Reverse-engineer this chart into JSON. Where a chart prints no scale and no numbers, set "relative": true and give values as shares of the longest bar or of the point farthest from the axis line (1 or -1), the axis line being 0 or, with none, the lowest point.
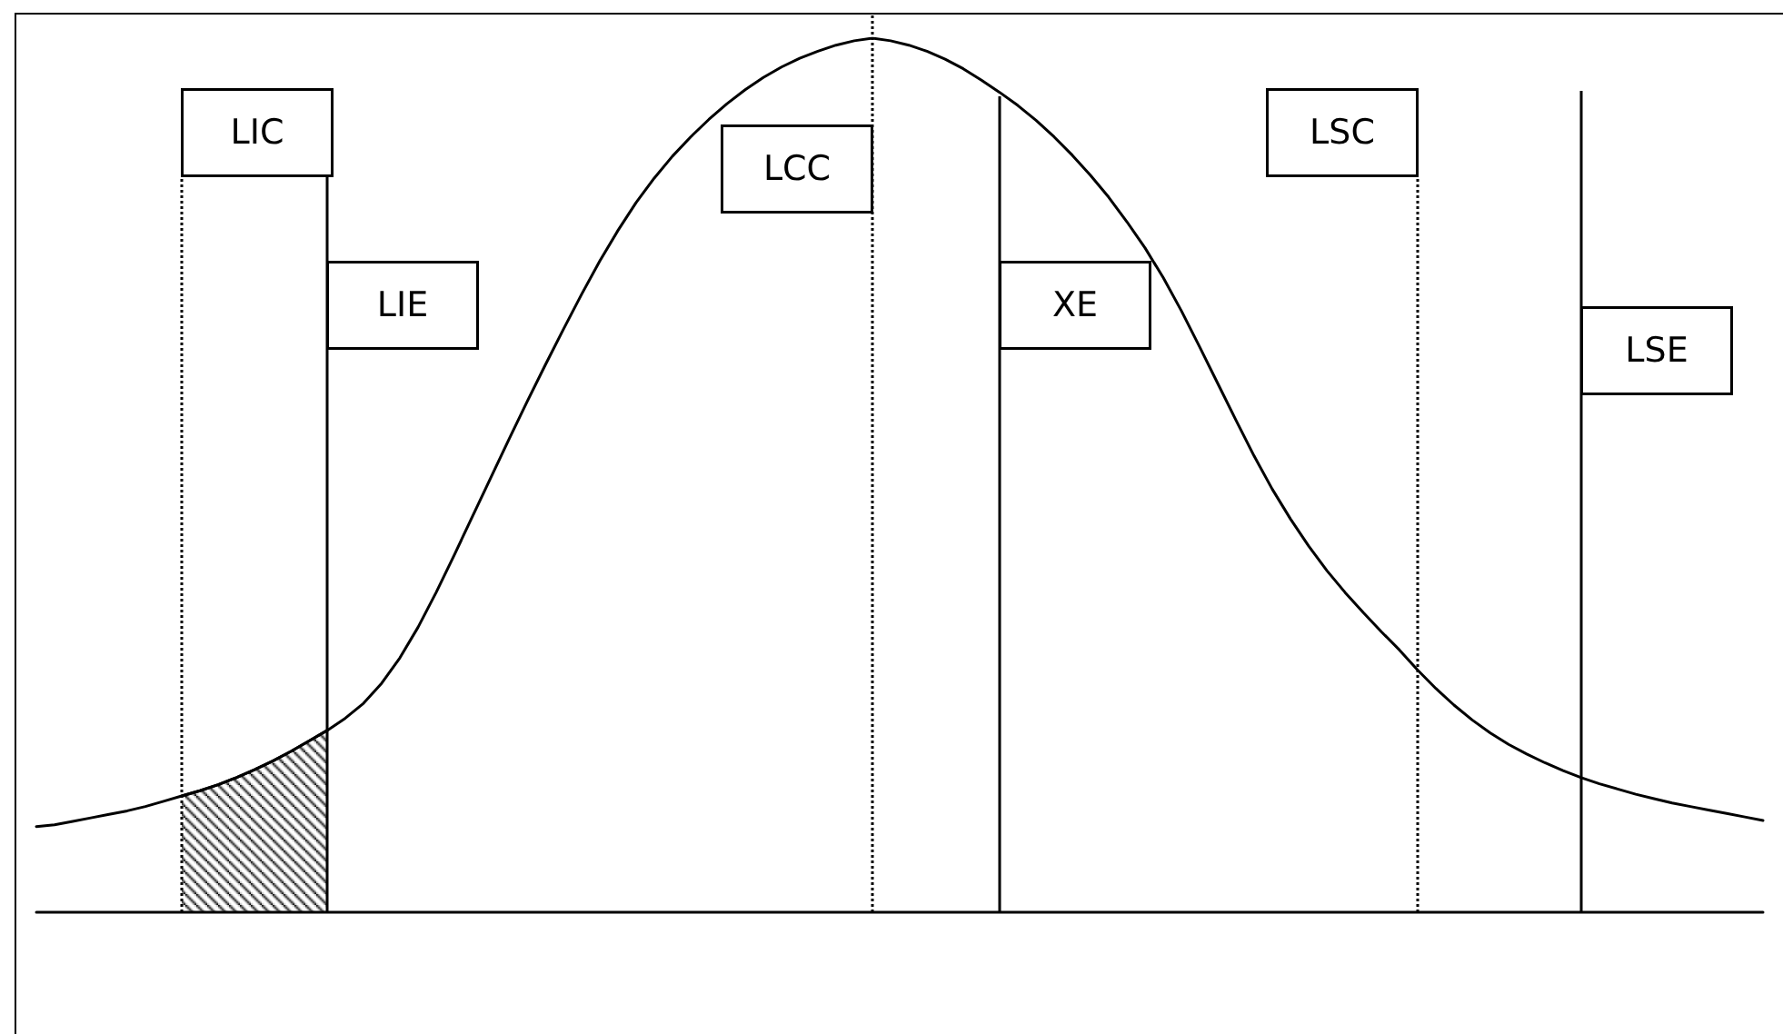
{
  "chart_data": {
    "type": "line",
    "relative": true,
    "grid": "x",
    "categories": [
      null,
      null,
      null,
      null,
      null,
      null,
      null,
      null,
      null,
      null,
      null,
      null,
      null,
      null,
      null,
      null,
      null,
      null,
      null,
      null,
      null,
      null,
      null,
      null,
      null,
      null,
      null,
      null,
      null,
      null,
      null,
      null,
      null,
      null,
      null,
      null,
      null,
      null,
      null,
      null,
      null,
      null,
      null,
      null,
      null,
      null,
      null,
      null,
      null,
      null,
      null,
      null,
      null,
      null,
      null,
      null,
      null,
      null,
      null,
      null,
      null,
      null,
      null,
      null,
      null,
      null,
      null,
      null,
      null,
      null,
      null,
      null,
      null,
      null,
      null,
      null,
      null,
      null,
      null,
      null,
      null,
      null,
      null,
      null,
      null,
      null,
      null,
      null,
      null,
      null,
      null,
      null,
      null,
      null,
      null,
      null
    ],
    "series": [
      {
        "color": "#000000",
        "values": [
          0.098,
          0.1,
          0.104,
          0.108,
          0.112,
          0.116,
          0.121,
          0.127,
          0.133,
          0.139,
          0.146,
          0.154,
          0.163,
          0.173,
          0.184,
          0.196,
          0.208,
          0.222,
          0.239,
          0.262,
          0.291,
          0.326,
          0.366,
          0.409,
          0.453,
          0.497,
          0.541,
          0.584,
          0.626,
          0.667,
          0.707,
          0.745,
          0.78,
          0.812,
          0.84,
          0.865,
          0.887,
          0.907,
          0.925,
          0.941,
          0.955,
          0.967,
          0.977,
          0.985,
          0.992,
          0.997,
          1,
          0.997,
          0.992,
          0.985,
          0.976,
          0.965,
          0.952,
          0.938,
          0.923,
          0.906,
          0.887,
          0.866,
          0.843,
          0.818,
          0.79,
          0.76,
          0.726,
          0.688,
          0.647,
          0.605,
          0.563,
          0.522,
          0.484,
          0.45,
          0.419,
          0.391,
          0.366,
          0.343,
          0.321,
          0.3,
          0.277,
          0.256,
          0.237,
          0.22,
          0.205,
          0.192,
          0.181,
          0.171,
          0.162,
          0.154,
          0.147,
          0.141,
          0.135,
          0.13,
          0.125,
          0.121,
          0.117,
          0.113,
          0.109,
          0.105
        ]
      },
      {
        "type": "area",
        "color": "#000000",
        "values": [
          null,
          null,
          null,
          null,
          null,
          null,
          null,
          null,
          0.133,
          0.139,
          0.146,
          0.154,
          0.163,
          0.173,
          0.184,
          0.196,
          0.208,
          null,
          null,
          null,
          null,
          null,
          null,
          null,
          null,
          null,
          null,
          null,
          null,
          null,
          null,
          null,
          null,
          null,
          null,
          null,
          null,
          null,
          null,
          null,
          null,
          null,
          null,
          null,
          null,
          null,
          null,
          null,
          null,
          null,
          null,
          null,
          null,
          null,
          null,
          null,
          null,
          null,
          null,
          null,
          null,
          null,
          null,
          null,
          null,
          null,
          null,
          null,
          null,
          null,
          null,
          null,
          null,
          null,
          null,
          null,
          null,
          null,
          null,
          null,
          null,
          null,
          null,
          null,
          null,
          null,
          null,
          null,
          null,
          null,
          null,
          null,
          null,
          null,
          null,
          null
        ]
      }
    ],
    "annotations": [
      "LIC",
      "LIE",
      "LCC",
      "XE",
      "LSC",
      "LSE"
    ]
  }
}
